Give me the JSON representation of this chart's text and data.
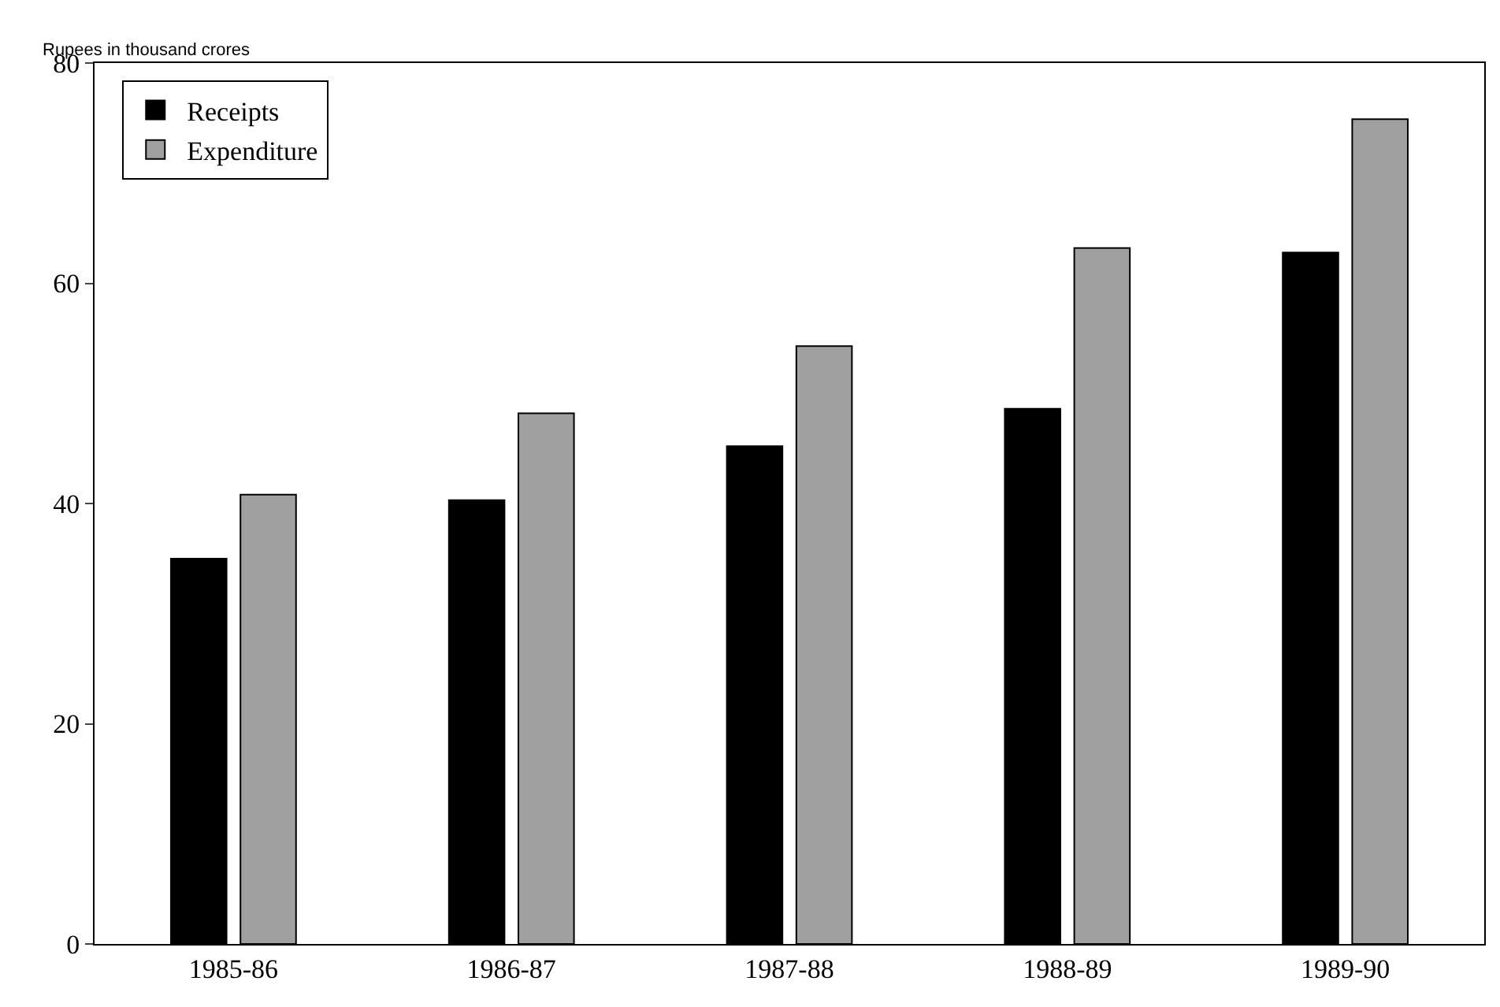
{
  "chart_data": {
    "type": "bar",
    "ylabel": "Rupees in thousand crores",
    "categories": [
      "1985-86",
      "1986-87",
      "1987-88",
      "1988-89",
      "1989-90"
    ],
    "series": [
      {
        "name": "Receipts",
        "color": "#000000",
        "values": [
          35,
          40.3,
          45.2,
          48.6,
          62.8
        ]
      },
      {
        "name": "Expenditure",
        "color": "#a0a0a0",
        "values": [
          40.8,
          48.2,
          54.3,
          63.2,
          74.9
        ]
      }
    ],
    "ylim": [
      0,
      80
    ],
    "yticks": [
      0,
      20,
      40,
      60,
      80
    ],
    "legend": "top left"
  }
}
